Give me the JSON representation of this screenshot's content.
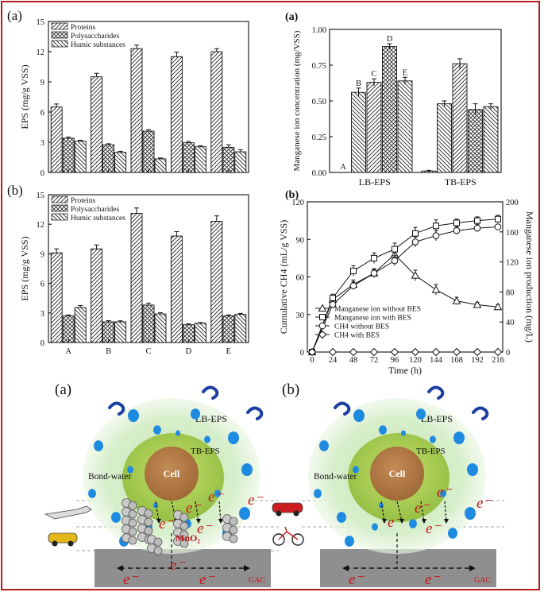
{
  "panel_labels": {
    "left_top": "(a)",
    "left_bottom": "(b)",
    "right_top": "(a)",
    "right_bottom": "(b)",
    "diagram_left": "(a)",
    "diagram_right": "(b)"
  },
  "colors": {
    "frame": "#b81d1d",
    "cell": "#b07a45",
    "tb_eps": "#9ec44a",
    "lb_eps": "#d6ecc4",
    "water_dot": "#1f8be0",
    "electron": "#c4141c",
    "gac": "#8f8f8f"
  },
  "chart_data": [
    {
      "id": "eps-a",
      "type": "bar",
      "ylabel": "EPS (mg/g VSS)",
      "ylim": [
        0,
        15
      ],
      "yticks": [
        0,
        3,
        6,
        9,
        12,
        15
      ],
      "categories": [
        "A",
        "B",
        "C",
        "D",
        "E"
      ],
      "show_category_labels": false,
      "series": [
        {
          "name": "Proteins",
          "values": [
            6.5,
            9.5,
            12.3,
            11.5,
            12.0
          ],
          "errors": [
            0.3,
            0.35,
            0.35,
            0.45,
            0.3
          ],
          "pattern": "pat-diag"
        },
        {
          "name": "Polysaccharides",
          "values": [
            3.4,
            2.75,
            4.1,
            2.95,
            2.5
          ],
          "errors": [
            0.12,
            0.1,
            0.15,
            0.12,
            0.25
          ],
          "pattern": "pat-cross"
        },
        {
          "name": "Humic substances",
          "values": [
            3.1,
            2.0,
            1.35,
            2.55,
            2.05
          ],
          "errors": [
            0.1,
            0.1,
            0.08,
            0.1,
            0.2
          ],
          "pattern": "pat-back"
        }
      ],
      "legend_position": "top-left"
    },
    {
      "id": "eps-b",
      "type": "bar",
      "ylabel": "EPS (mg/g VSS)",
      "ylim": [
        0,
        15
      ],
      "yticks": [
        0,
        3,
        6,
        9,
        12,
        15
      ],
      "categories": [
        "A",
        "B",
        "C",
        "D",
        "E"
      ],
      "show_category_labels": true,
      "series": [
        {
          "name": "Proteins",
          "values": [
            9.1,
            9.5,
            13.1,
            10.8,
            12.3
          ],
          "errors": [
            0.4,
            0.4,
            0.55,
            0.45,
            0.55
          ],
          "pattern": "pat-diag"
        },
        {
          "name": "Polysaccharides",
          "values": [
            2.7,
            2.1,
            3.8,
            1.8,
            2.7
          ],
          "errors": [
            0.1,
            0.12,
            0.2,
            0.1,
            0.1
          ],
          "pattern": "pat-cross"
        },
        {
          "name": "Humic substances",
          "values": [
            3.55,
            2.1,
            2.9,
            1.95,
            2.85
          ],
          "errors": [
            0.2,
            0.1,
            0.12,
            0.08,
            0.1
          ],
          "pattern": "pat-back"
        }
      ],
      "legend_position": "top-left"
    },
    {
      "id": "mn-a",
      "type": "bar",
      "ylabel": "Manganese ion concentration (mg/VSS)",
      "ylim": [
        0,
        1.0
      ],
      "yticks": [
        "0.00",
        "0.25",
        "0.50",
        "0.75",
        "1.00"
      ],
      "groups": [
        {
          "label": "LB-EPS",
          "bars": [
            {
              "letter": "A",
              "value": 0.0,
              "error": 0.0,
              "pattern": "pat-diag"
            },
            {
              "letter": "B",
              "value": 0.56,
              "error": 0.03,
              "pattern": "pat-back"
            },
            {
              "letter": "C",
              "value": 0.63,
              "error": 0.025,
              "pattern": "pat-diag"
            },
            {
              "letter": "D",
              "value": 0.88,
              "error": 0.02,
              "pattern": "pat-cross"
            },
            {
              "letter": "E",
              "value": 0.64,
              "error": 0.025,
              "pattern": "pat-back"
            }
          ]
        },
        {
          "label": "TB-EPS",
          "bars": [
            {
              "letter": "",
              "value": 0.01,
              "error": 0.005,
              "pattern": "pat-diag"
            },
            {
              "letter": "",
              "value": 0.48,
              "error": 0.02,
              "pattern": "pat-back"
            },
            {
              "letter": "",
              "value": 0.76,
              "error": 0.035,
              "pattern": "pat-diag"
            },
            {
              "letter": "",
              "value": 0.44,
              "error": 0.04,
              "pattern": "pat-cross"
            },
            {
              "letter": "",
              "value": 0.46,
              "error": 0.02,
              "pattern": "pat-back"
            }
          ]
        }
      ]
    },
    {
      "id": "ch4-b",
      "type": "line",
      "xlabel": "Time (h)",
      "ylabel_left": "Cumulative CH4 (mL/g VSS)",
      "ylabel_right": "Manganese ion production (mg/L)",
      "x": [
        0,
        24,
        48,
        72,
        96,
        120,
        144,
        168,
        192,
        216
      ],
      "ylim_left": [
        0,
        120
      ],
      "yticks_left": [
        0,
        30,
        60,
        90,
        120
      ],
      "ylim_right": [
        0,
        200
      ],
      "yticks_right": [
        0,
        40,
        80,
        120,
        160,
        200
      ],
      "series": [
        {
          "name": "Manganese ion without BES",
          "marker": "triangle",
          "axis": "right",
          "values": [
            0,
            70,
            90,
            105,
            130,
            102,
            83,
            68,
            63,
            60
          ],
          "errors": [
            0,
            5,
            6,
            6,
            7,
            7,
            7,
            5,
            3,
            3
          ]
        },
        {
          "name": "Manganese ion with BES",
          "marker": "square",
          "axis": "right",
          "values": [
            0,
            72,
            108,
            125,
            137,
            158,
            168,
            172,
            175,
            177
          ],
          "errors": [
            0,
            5,
            7,
            7,
            8,
            8,
            8,
            5,
            5,
            5
          ]
        },
        {
          "name": "CH4 without BES",
          "marker": "circle",
          "axis": "left",
          "values": [
            0,
            38,
            53,
            63,
            73,
            88,
            93,
            97,
            99,
            100
          ],
          "errors": [
            0,
            3,
            3,
            3,
            4,
            4,
            4,
            3,
            3,
            2
          ]
        },
        {
          "name": "CH4 with BES",
          "marker": "diamond",
          "axis": "left",
          "values": [
            0,
            0,
            0,
            0,
            0,
            0,
            0,
            0,
            0,
            0
          ],
          "errors": [
            0,
            0,
            0,
            0,
            0,
            0,
            0,
            0,
            0,
            0
          ]
        }
      ]
    }
  ],
  "diagram": {
    "left": {
      "lb_eps": "LB-EPS",
      "tb_eps": "TB-EPS",
      "cell": "Cell",
      "bond_water": "Bond-water",
      "mno2": "MnO₂",
      "gac": "GAC",
      "electron": "e⁻"
    },
    "right": {
      "lb_eps": "LB-EPS",
      "tb_eps": "TB-EPS",
      "cell": "Cell",
      "bond_water": "Bond-water",
      "gac": "GAC",
      "electron": "e⁻"
    }
  }
}
